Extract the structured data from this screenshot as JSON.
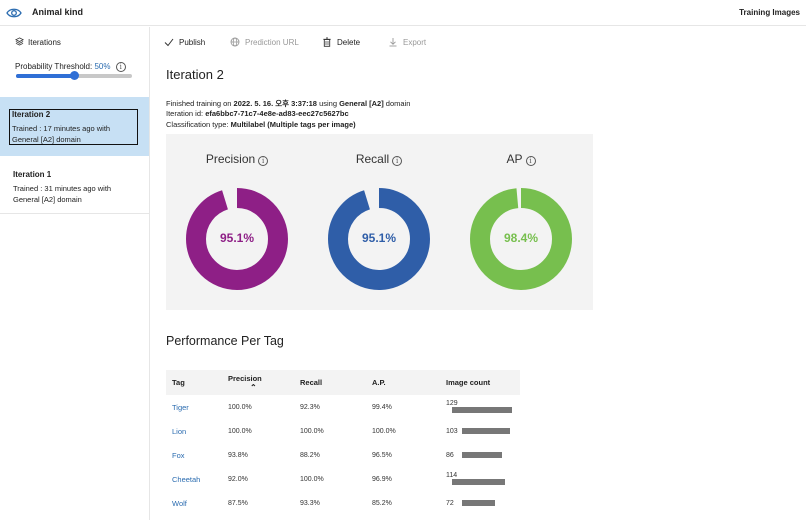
{
  "header": {
    "project_name": "Animal kind",
    "active_tab": "Training Images"
  },
  "sidebar": {
    "heading": "Iterations",
    "threshold_label": "Probability Threshold:",
    "threshold_value": "50%",
    "threshold_fraction": 0.5,
    "iterations": [
      {
        "name": "Iteration 2",
        "trained": "Trained : 17 minutes ago with General [A2] domain",
        "selected": true
      },
      {
        "name": "Iteration 1",
        "trained": "Trained : 31 minutes ago with General [A2] domain",
        "selected": false
      }
    ]
  },
  "toolbar": {
    "publish": "Publish",
    "prediction_url": "Prediction URL",
    "delete": "Delete",
    "export": "Export"
  },
  "main": {
    "title": "Iteration 2",
    "finished_prefix": "Finished training on ",
    "finished_date": "2022. 5. 16. 오후 3:37:18",
    "finished_mid": " using ",
    "finished_domain": "General [A2]",
    "finished_suffix": " domain",
    "iteration_id_label": "Iteration id: ",
    "iteration_id": "efa6bbc7-71c7-4e8e-ad83-eec27c5627bc",
    "classification_label": "Classification type: ",
    "classification_value": "Multilabel (Multiple tags per image)"
  },
  "metrics": [
    {
      "label": "Precision",
      "value": "95.1%",
      "fraction": 0.951,
      "color": "#8e1f86"
    },
    {
      "label": "Recall",
      "value": "95.1%",
      "fraction": 0.951,
      "color": "#2f5ea8"
    },
    {
      "label": "AP",
      "value": "98.4%",
      "fraction": 0.984,
      "color": "#77bf4e"
    }
  ],
  "performance": {
    "title": "Performance Per Tag",
    "columns": [
      "Tag",
      "Precision",
      "Recall",
      "A.P.",
      "Image count"
    ],
    "rows": [
      {
        "tag": "Tiger",
        "precision": "100.0%",
        "recall": "92.3%",
        "ap": "99.4%",
        "count": 129
      },
      {
        "tag": "Lion",
        "precision": "100.0%",
        "recall": "100.0%",
        "ap": "100.0%",
        "count": 103
      },
      {
        "tag": "Fox",
        "precision": "93.8%",
        "recall": "88.2%",
        "ap": "96.5%",
        "count": 86
      },
      {
        "tag": "Cheetah",
        "precision": "92.0%",
        "recall": "100.0%",
        "ap": "96.9%",
        "count": 114
      },
      {
        "tag": "Wolf",
        "precision": "87.5%",
        "recall": "93.3%",
        "ap": "85.2%",
        "count": 72
      }
    ]
  }
}
